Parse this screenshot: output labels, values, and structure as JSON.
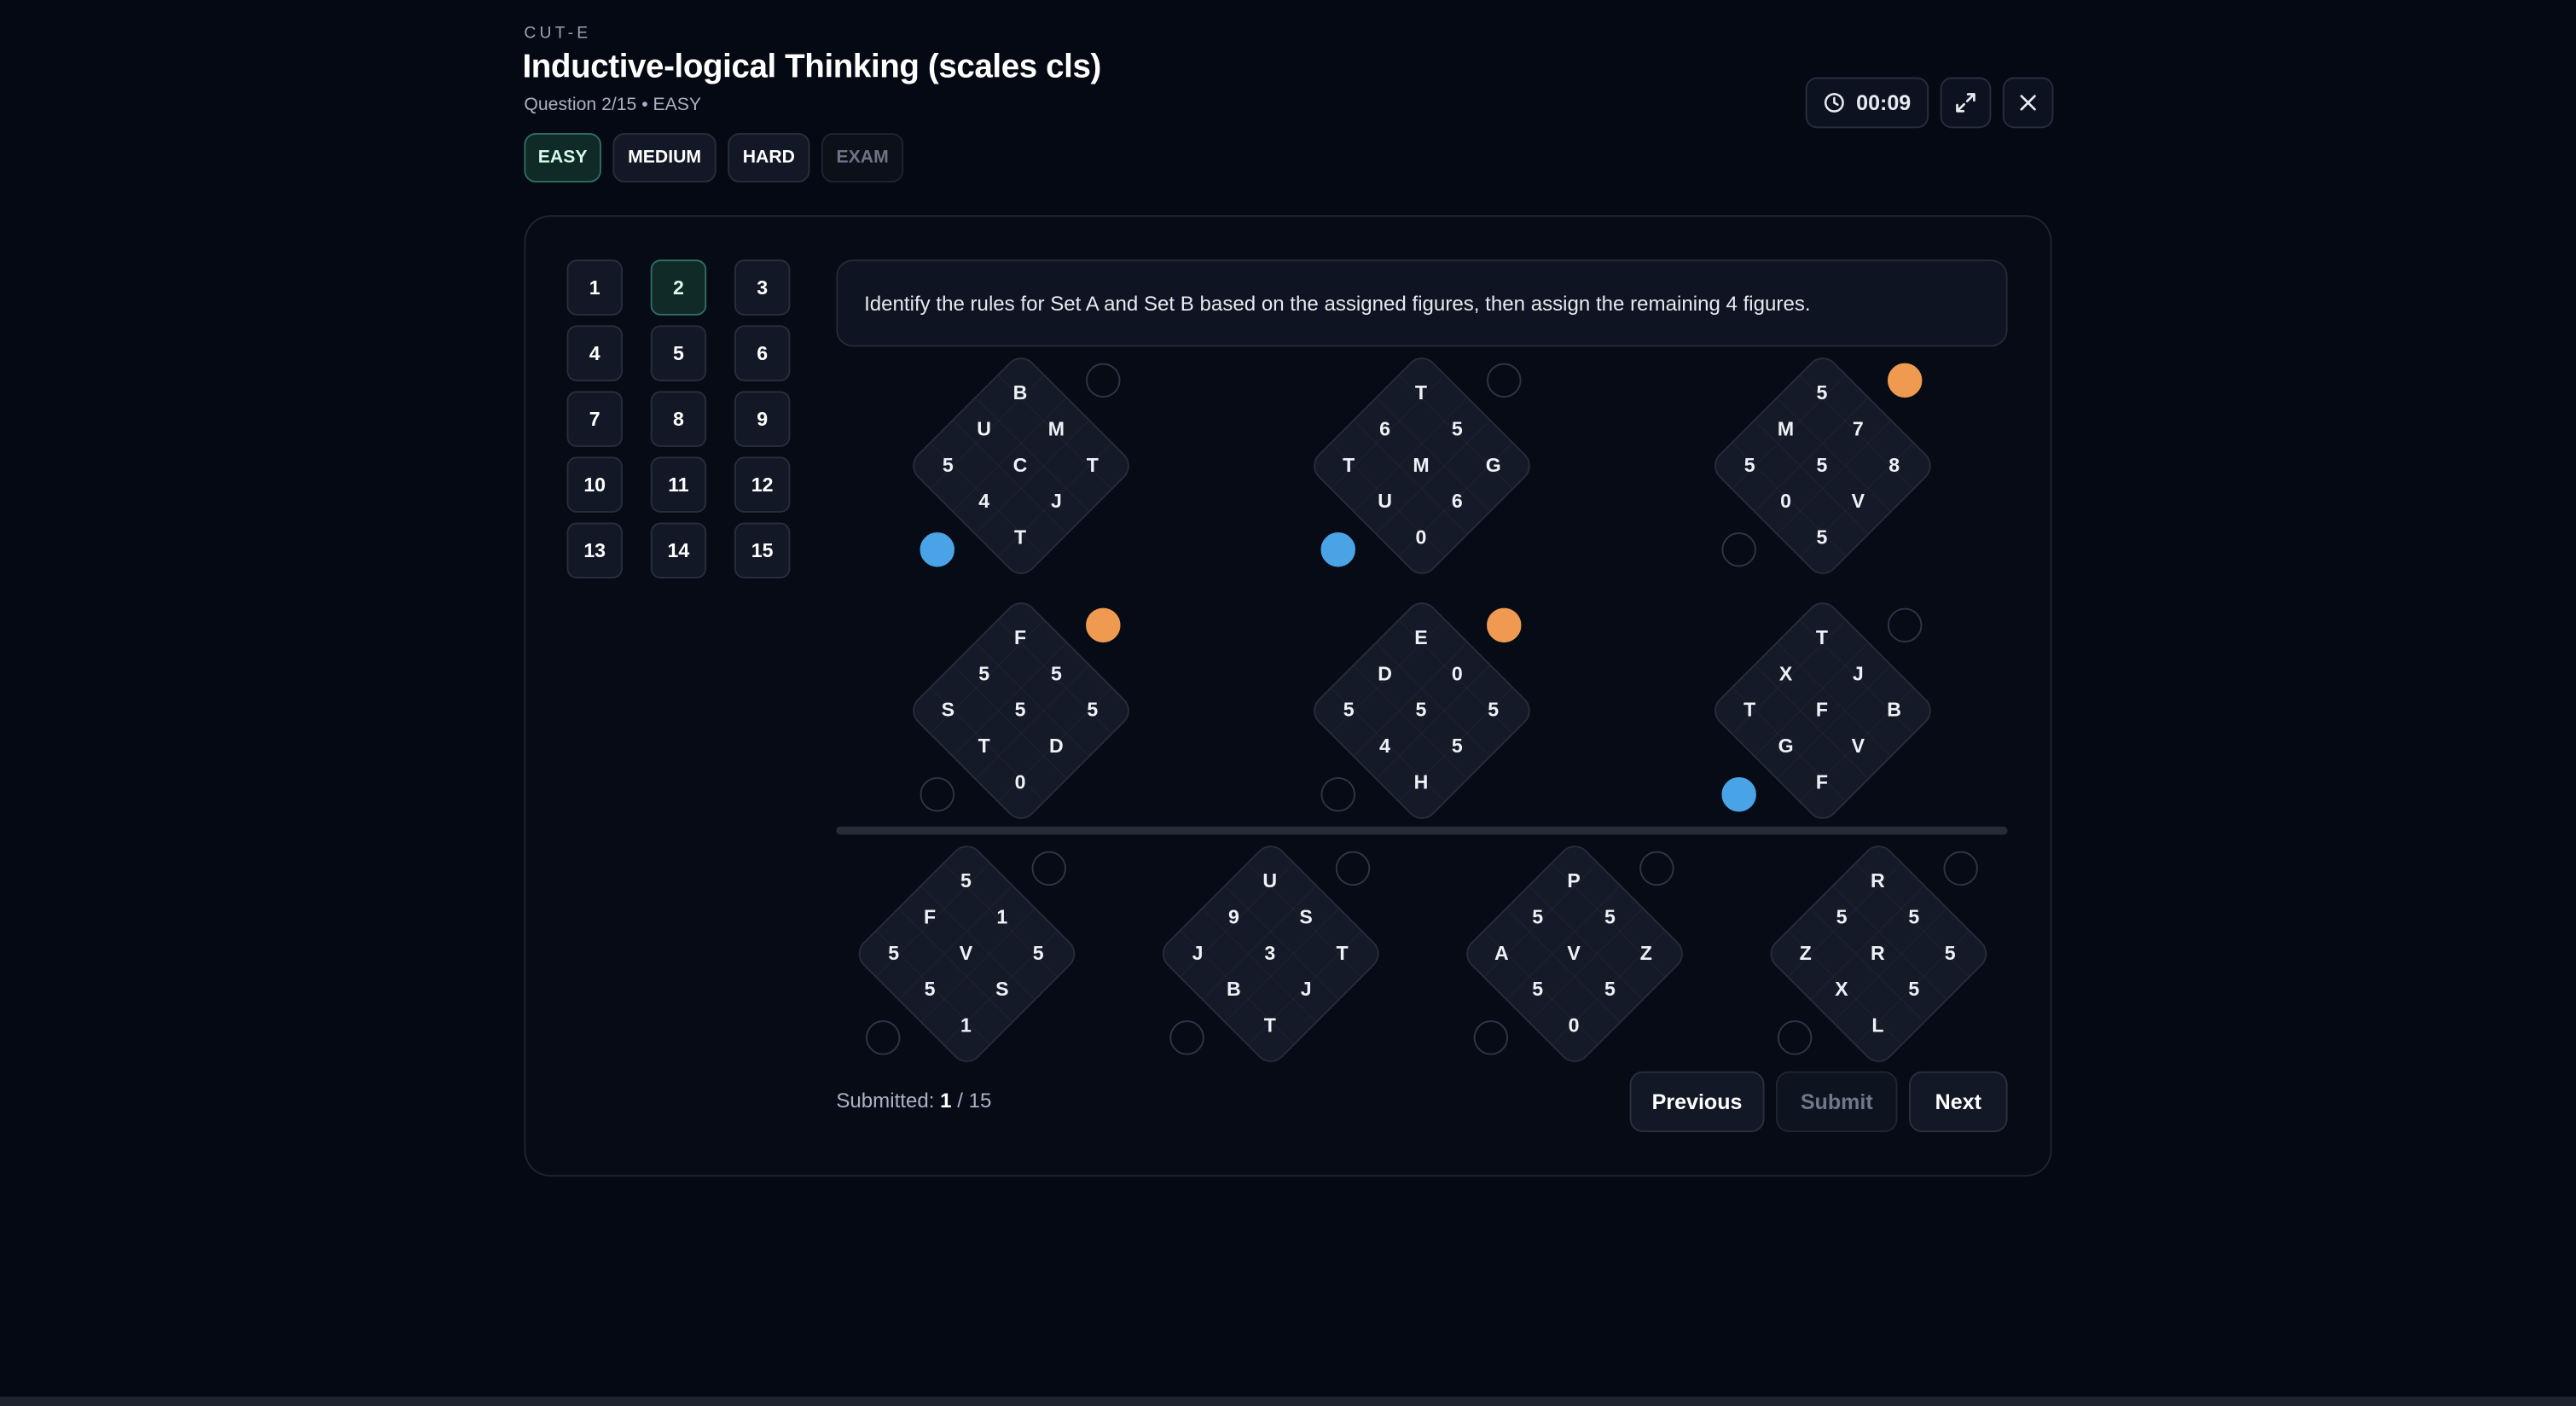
{
  "header": {
    "brand": "CUT-E",
    "title": "Inductive-logical Thinking (scales cls)",
    "subtitle": "Question 2/15 • EASY",
    "timer": "00:09"
  },
  "difficulty_tabs": [
    {
      "label": "EASY",
      "state": "active"
    },
    {
      "label": "MEDIUM",
      "state": "normal"
    },
    {
      "label": "HARD",
      "state": "normal"
    },
    {
      "label": "EXAM",
      "state": "disabled"
    }
  ],
  "questions": {
    "items": [
      "1",
      "2",
      "3",
      "4",
      "5",
      "6",
      "7",
      "8",
      "9",
      "10",
      "11",
      "12",
      "13",
      "14",
      "15"
    ],
    "current": "2"
  },
  "instruction": "Identify the rules for Set A and Set B based on the assigned figures, then assign the remaining 4 figures.",
  "colors": {
    "set_a": "#4aa3e6",
    "set_b": "#ef9a50",
    "accent": "#2f6d60"
  },
  "figures": [
    {
      "rows": [
        [
          "B"
        ],
        [
          "U",
          "M"
        ],
        [
          "5",
          "C",
          "T"
        ],
        [
          "4",
          "J"
        ],
        [
          "T"
        ]
      ],
      "assigned": "A"
    },
    {
      "rows": [
        [
          "T"
        ],
        [
          "6",
          "5"
        ],
        [
          "T",
          "M",
          "G"
        ],
        [
          "U",
          "6"
        ],
        [
          "0"
        ]
      ],
      "assigned": "A"
    },
    {
      "rows": [
        [
          "5"
        ],
        [
          "M",
          "7"
        ],
        [
          "5",
          "5",
          "8"
        ],
        [
          "0",
          "V"
        ],
        [
          "5"
        ]
      ],
      "assigned": "B"
    },
    {
      "rows": [
        [
          "F"
        ],
        [
          "5",
          "5"
        ],
        [
          "S",
          "5",
          "5"
        ],
        [
          "T",
          "D"
        ],
        [
          "0"
        ]
      ],
      "assigned": "B"
    },
    {
      "rows": [
        [
          "E"
        ],
        [
          "D",
          "0"
        ],
        [
          "5",
          "5",
          "5"
        ],
        [
          "4",
          "5"
        ],
        [
          "H"
        ]
      ],
      "assigned": "B"
    },
    {
      "rows": [
        [
          "T"
        ],
        [
          "X",
          "J"
        ],
        [
          "T",
          "F",
          "B"
        ],
        [
          "G",
          "V"
        ],
        [
          "F"
        ]
      ],
      "assigned": "A"
    }
  ],
  "remaining": [
    {
      "rows": [
        [
          "5"
        ],
        [
          "F",
          "1"
        ],
        [
          "5",
          "V",
          "5"
        ],
        [
          "5",
          "S"
        ],
        [
          "1"
        ]
      ],
      "assigned": ""
    },
    {
      "rows": [
        [
          "U"
        ],
        [
          "9",
          "S"
        ],
        [
          "J",
          "3",
          "T"
        ],
        [
          "B",
          "J"
        ],
        [
          "T"
        ]
      ],
      "assigned": ""
    },
    {
      "rows": [
        [
          "P"
        ],
        [
          "5",
          "5"
        ],
        [
          "A",
          "V",
          "Z"
        ],
        [
          "5",
          "5"
        ],
        [
          "0"
        ]
      ],
      "assigned": ""
    },
    {
      "rows": [
        [
          "R"
        ],
        [
          "5",
          "5"
        ],
        [
          "Z",
          "R",
          "5"
        ],
        [
          "X",
          "5"
        ],
        [
          "L"
        ]
      ],
      "assigned": ""
    }
  ],
  "footer": {
    "submitted_label": "Submitted:",
    "submitted_count": "1",
    "submitted_total": "/ 15",
    "previous_label": "Previous",
    "submit_label": "Submit",
    "next_label": "Next"
  },
  "icons": {
    "timer": "clock-icon",
    "fullscreen": "expand-icon",
    "close": "close-icon"
  }
}
